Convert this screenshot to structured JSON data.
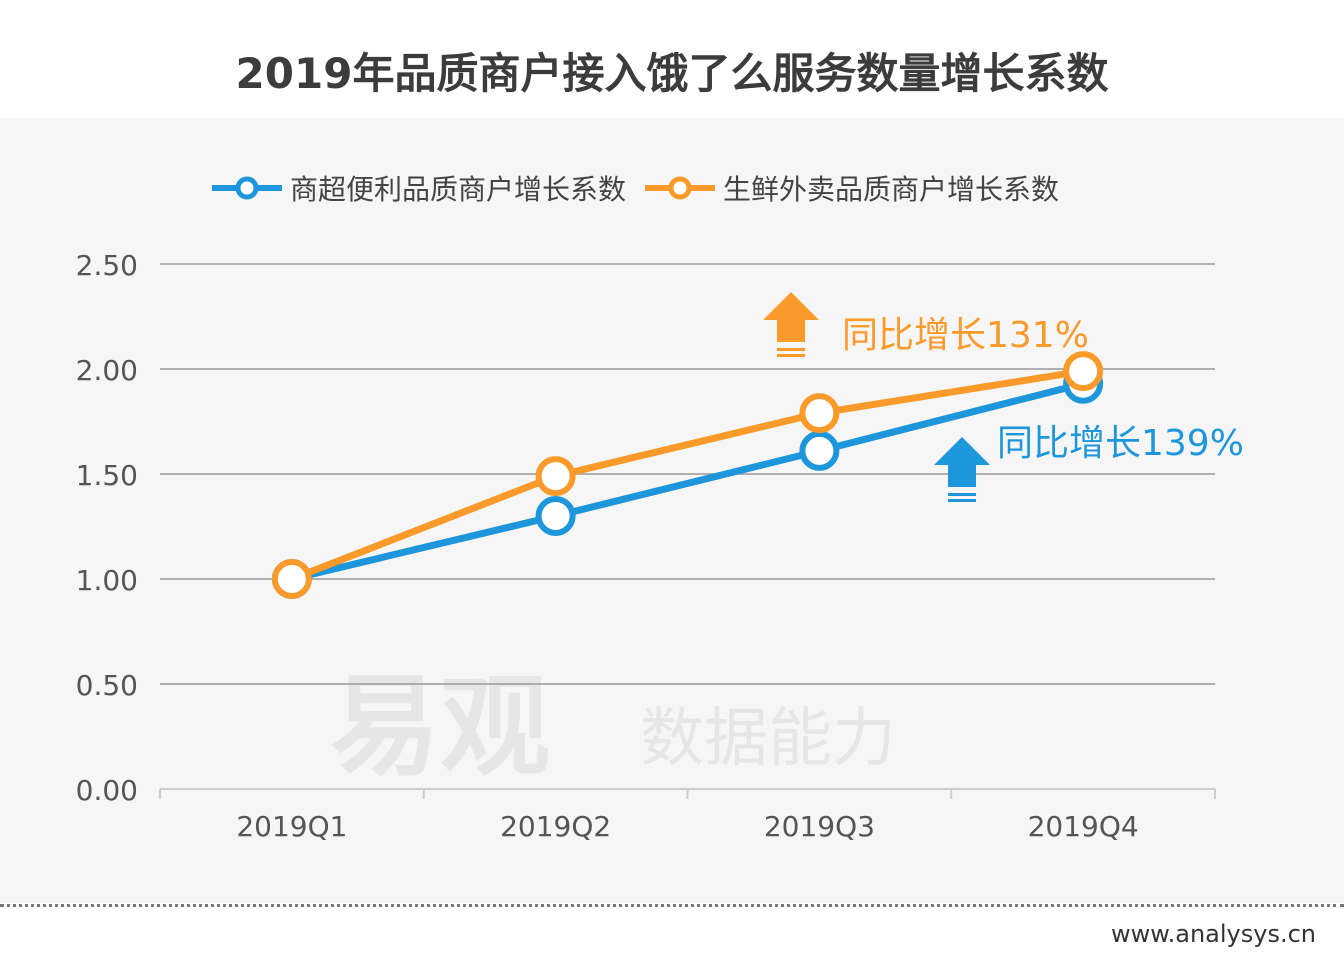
{
  "title": "2019年品质商户接入饿了么服务数量增长系数",
  "watermark": [
    "易观",
    "数据能力"
  ],
  "footer": "www.analysys.cn",
  "chart_data": {
    "type": "line",
    "title": "2019年品质商户接入饿了么服务数量增长系数",
    "categories": [
      "2019Q1",
      "2019Q2",
      "2019Q3",
      "2019Q4"
    ],
    "ylim": [
      0,
      2.5
    ],
    "yticks": [
      "0.00",
      "0.50",
      "1.00",
      "1.50",
      "2.00",
      "2.50"
    ],
    "grid": true,
    "legend_position": "top",
    "series": [
      {
        "name": "商超便利品质商户增长系数",
        "color": "#1e96dc",
        "values": [
          1.0,
          1.3,
          1.61,
          1.93
        ]
      },
      {
        "name": "生鲜外卖品质商户增长系数",
        "color": "#f99a2a",
        "values": [
          1.0,
          1.49,
          1.79,
          1.99
        ]
      }
    ],
    "annotations": [
      {
        "text": "同比增长131%",
        "color": "#f99a2a"
      },
      {
        "text": "同比增长139%",
        "color": "#1e96dc"
      }
    ]
  }
}
